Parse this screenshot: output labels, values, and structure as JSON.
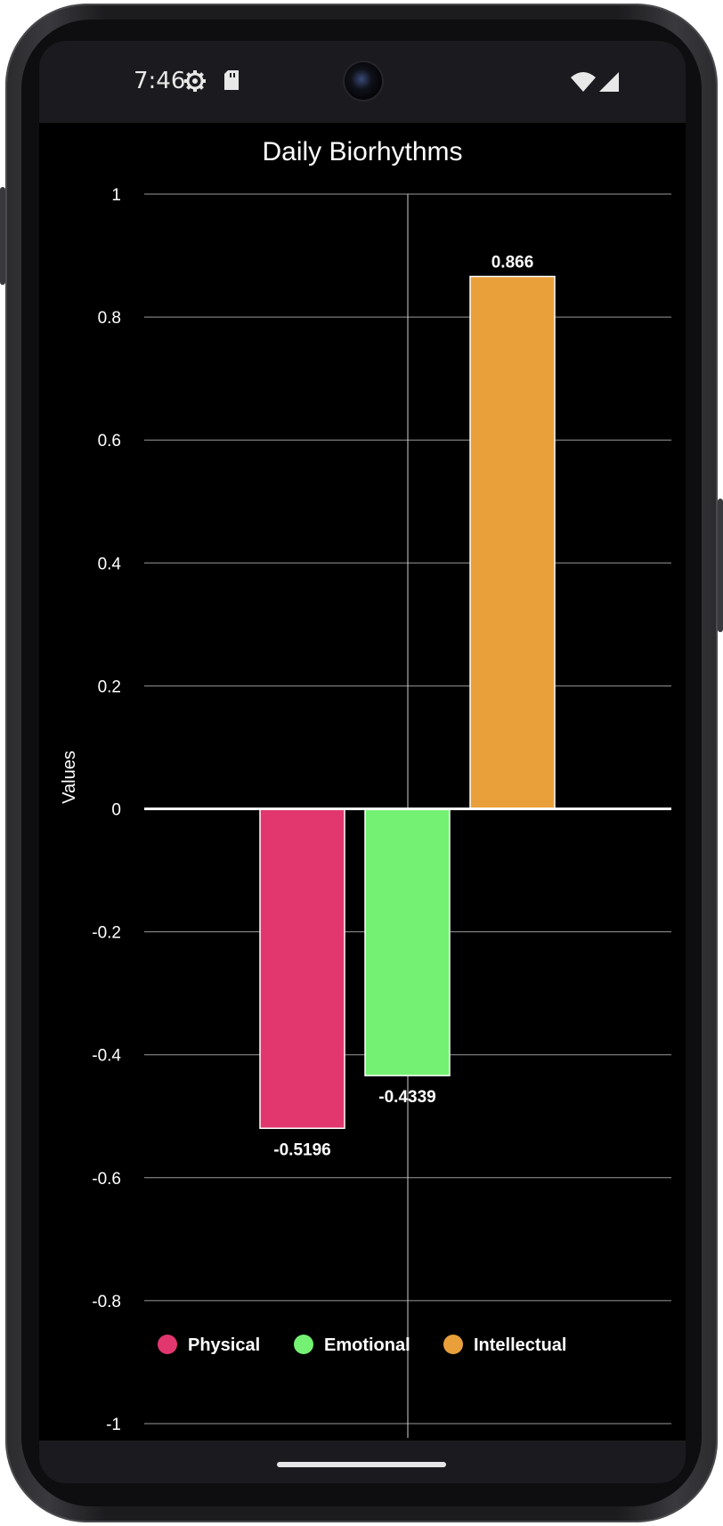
{
  "status_bar": {
    "time": "7:46",
    "icons": [
      "settings-gear-icon",
      "sd-card-icon",
      "wifi-icon",
      "cell-signal-icon"
    ]
  },
  "colors": {
    "background": "#000000",
    "grid": "#9a9a9a",
    "text": "#ffffff",
    "bar_border": "#ffffff"
  },
  "chart_data": {
    "type": "bar",
    "title": "Daily Biorhythms",
    "ylabel": "Values",
    "xlabel": "",
    "ylim": [
      -1,
      1
    ],
    "yticks": [
      1,
      0.8,
      0.6,
      0.4,
      0.2,
      0,
      -0.2,
      -0.4,
      -0.6,
      -0.8,
      -1
    ],
    "ytick_labels": [
      "1",
      "0.8",
      "0.6",
      "0.4",
      "0.2",
      "0",
      "-0.2",
      "-0.4",
      "-0.6",
      "-0.8",
      "-1"
    ],
    "grid": true,
    "legend_position": "bottom",
    "series": [
      {
        "name": "Physical",
        "value": -0.5196,
        "label": "-0.5196",
        "color": "#e2376e"
      },
      {
        "name": "Emotional",
        "value": -0.4339,
        "label": "-0.4339",
        "color": "#74f173"
      },
      {
        "name": "Intellectual",
        "value": 0.866,
        "label": "0.866",
        "color": "#e9a03b"
      }
    ]
  }
}
